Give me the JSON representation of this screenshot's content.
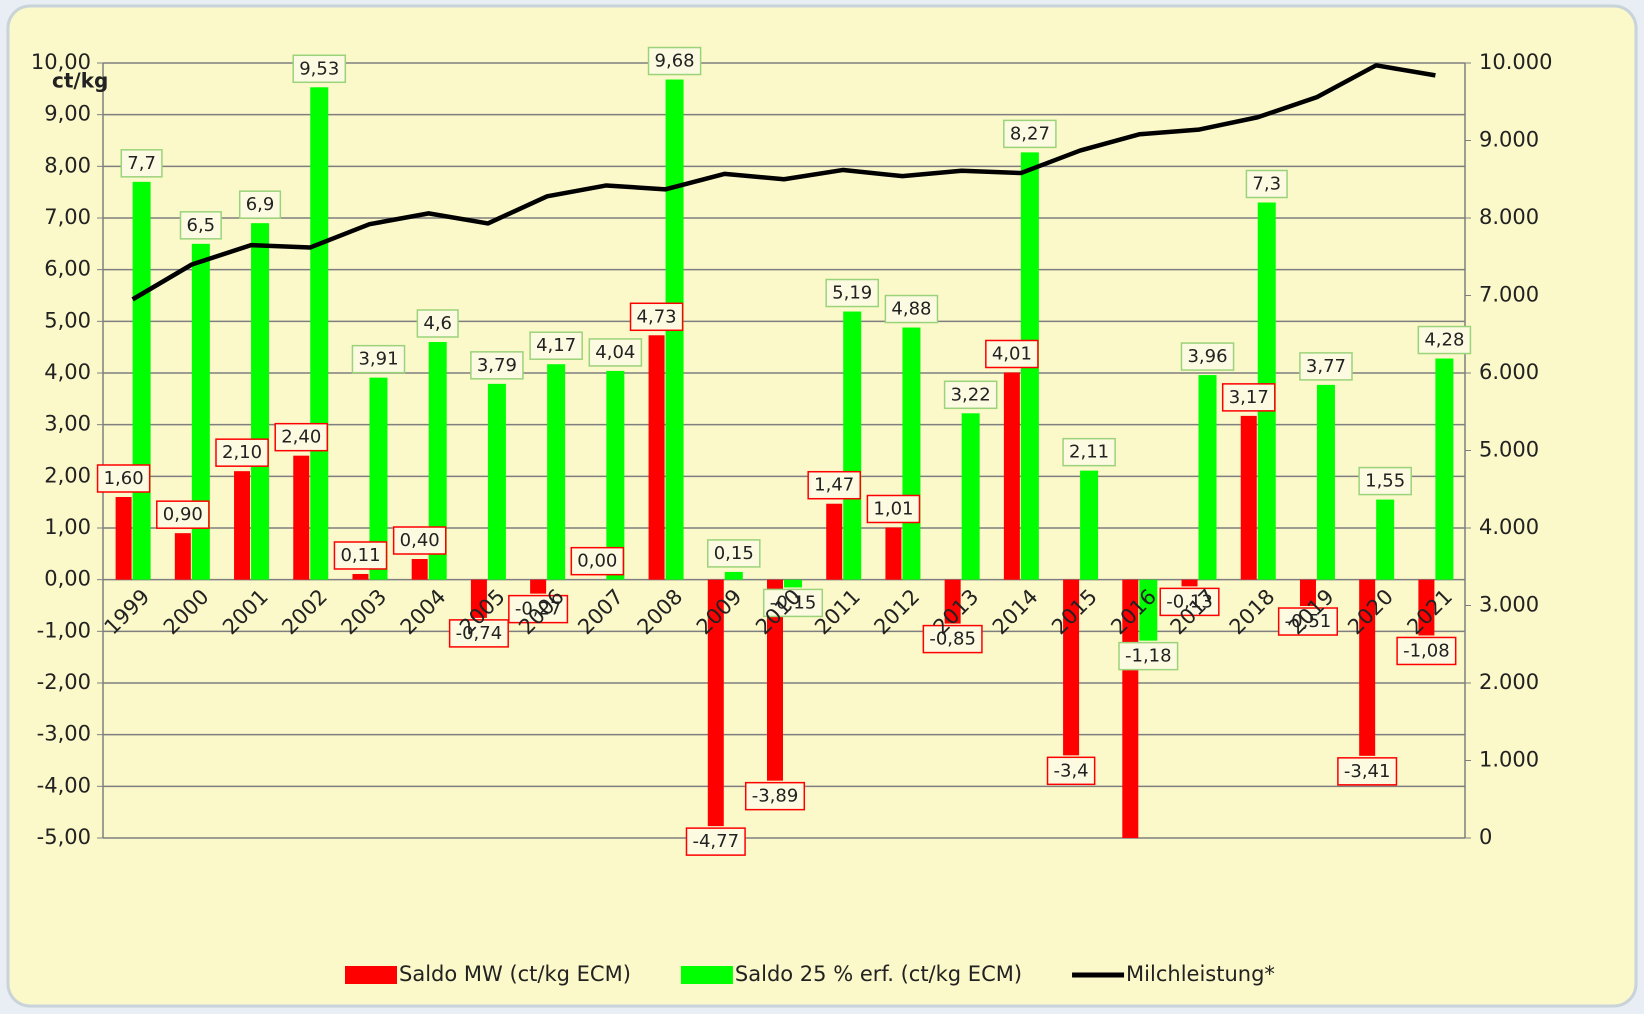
{
  "chart_data": {
    "type": "bar",
    "y_label": "ct/kg",
    "categories": [
      "1999",
      "2000",
      "2001",
      "2002",
      "2003",
      "2004",
      "2005",
      "2006",
      "2007",
      "2008",
      "2009",
      "2010",
      "2011",
      "2012",
      "2013",
      "2014",
      "2015",
      "2016",
      "2017",
      "2018",
      "2019",
      "2020",
      "2021"
    ],
    "series": [
      {
        "name": "Saldo MW (ct/kg ECM)",
        "color": "#ff0000",
        "label_border": "#ff0000",
        "values": [
          1.6,
          0.9,
          2.1,
          2.4,
          0.11,
          0.4,
          -0.74,
          -0.27,
          0,
          4.73,
          -4.77,
          -3.89,
          1.47,
          1.01,
          -0.85,
          4.01,
          -3.4,
          -5.0,
          -0.13,
          3.17,
          -0.51,
          -3.41,
          -1.08
        ],
        "value_labels": [
          "1,60",
          "0,90",
          "2,10",
          "2,40",
          "0,11",
          "0,40",
          "-0,74",
          "-0,27",
          "0,00",
          "4,73",
          "-4,77",
          "-3,89",
          "1,47",
          "1,01",
          "-0,85",
          "4,01",
          "-3,4",
          null,
          "-0,13",
          "3,17",
          "-0,51",
          "-3,41",
          "-1,08"
        ]
      },
      {
        "name": "Saldo 25 % erf. (ct/kg ECM)",
        "color": "#00ff00",
        "label_border": "#9bd37a",
        "values": [
          7.7,
          6.5,
          6.9,
          9.53,
          3.91,
          4.6,
          3.79,
          4.17,
          4.04,
          9.68,
          0.15,
          -0.15,
          5.19,
          4.88,
          3.22,
          8.27,
          2.11,
          -1.18,
          3.96,
          7.3,
          3.77,
          1.55,
          4.28
        ],
        "value_labels": [
          "7,7",
          "6,5",
          "6,9",
          "9,53",
          "3,91",
          "4,6",
          "3,79",
          "4,17",
          "4,04",
          "9,68",
          "0,15",
          "-0,15",
          "5,19",
          "4,88",
          "3,22",
          "8,27",
          "2,11",
          "-1,18",
          "3,96",
          "7,3",
          "3,77",
          "1,55",
          "4,28"
        ]
      },
      {
        "name": "Milchleistung*",
        "color": "#000000",
        "axis": "y2",
        "kind": "line",
        "values": [
          6950,
          7400,
          7650,
          7620,
          7920,
          8060,
          7930,
          8280,
          8420,
          8370,
          8570,
          8500,
          8620,
          8540,
          8610,
          8580,
          8870,
          9080,
          9140,
          9300,
          9560,
          9970,
          9840
        ]
      }
    ],
    "ylim": [
      -5,
      10
    ],
    "yticks": [
      {
        "value": -5,
        "label": "-5,00"
      },
      {
        "value": -4,
        "label": "-4,00"
      },
      {
        "value": -3,
        "label": "-3,00"
      },
      {
        "value": -2,
        "label": "-2,00"
      },
      {
        "value": -1,
        "label": "-1,00"
      },
      {
        "value": 0,
        "label": "0,00"
      },
      {
        "value": 1,
        "label": "1,00"
      },
      {
        "value": 2,
        "label": "2,00"
      },
      {
        "value": 3,
        "label": "3,00"
      },
      {
        "value": 4,
        "label": "4,00"
      },
      {
        "value": 5,
        "label": "5,00"
      },
      {
        "value": 6,
        "label": "6,00"
      },
      {
        "value": 7,
        "label": "7,00"
      },
      {
        "value": 8,
        "label": "8,00"
      },
      {
        "value": 9,
        "label": "9,00"
      },
      {
        "value": 10,
        "label": "10,00"
      }
    ],
    "y2lim": [
      0,
      10000
    ],
    "y2ticks": [
      0,
      {
        "value": 1000,
        "label": "1.000"
      },
      {
        "value": 2000,
        "label": "2.000"
      },
      {
        "value": 3000,
        "label": "3.000"
      },
      {
        "value": 4000,
        "label": "4.000"
      },
      {
        "value": 5000,
        "label": "5.000"
      },
      {
        "value": 6000,
        "label": "6.000"
      },
      {
        "value": 7000,
        "label": "7.000"
      },
      {
        "value": 8000,
        "label": "8.000"
      },
      {
        "value": 9000,
        "label": "9.000"
      },
      {
        "value": 10000,
        "label": "10.000"
      }
    ],
    "grid": true,
    "legend": "bottom"
  }
}
